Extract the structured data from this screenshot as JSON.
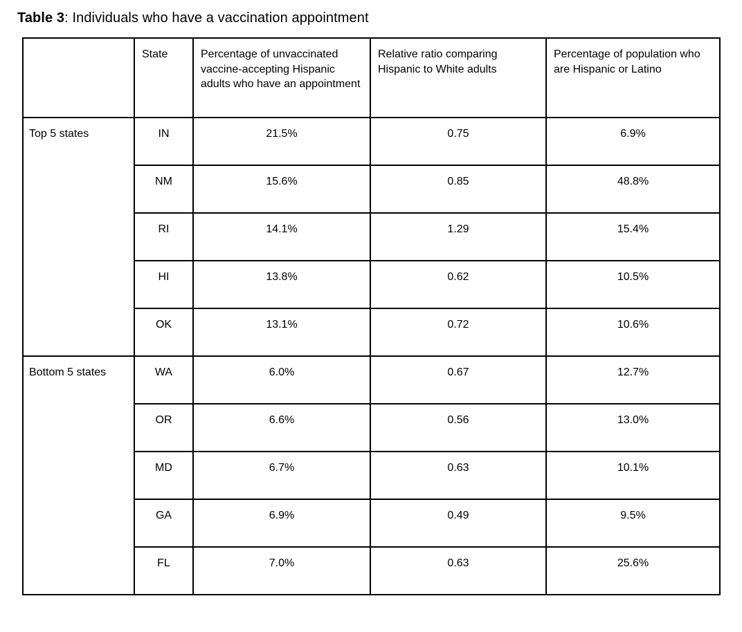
{
  "page": {
    "title_bold": "Table 3",
    "title_rest": ": Individuals who have a vaccination appointment"
  },
  "table": {
    "headers": {
      "group": "",
      "state": "State",
      "pct_appointment": "Percentage of unvaccinated vaccine-accepting Hispanic adults who have an appointment",
      "relative_ratio": "Relative ratio comparing Hispanic to White adults",
      "pct_population": "Percentage of population who are Hispanic or Latino"
    },
    "groups": [
      {
        "label": "Top 5 states",
        "rows": [
          {
            "state": "IN",
            "pct_appointment": "21.5%",
            "relative_ratio": "0.75",
            "pct_population": "6.9%"
          },
          {
            "state": "NM",
            "pct_appointment": "15.6%",
            "relative_ratio": "0.85",
            "pct_population": "48.8%"
          },
          {
            "state": "RI",
            "pct_appointment": "14.1%",
            "relative_ratio": "1.29",
            "pct_population": "15.4%"
          },
          {
            "state": "HI",
            "pct_appointment": "13.8%",
            "relative_ratio": "0.62",
            "pct_population": "10.5%"
          },
          {
            "state": "OK",
            "pct_appointment": "13.1%",
            "relative_ratio": "0.72",
            "pct_population": "10.6%"
          }
        ]
      },
      {
        "label": "Bottom 5 states",
        "rows": [
          {
            "state": "WA",
            "pct_appointment": "6.0%",
            "relative_ratio": "0.67",
            "pct_population": "12.7%"
          },
          {
            "state": "OR",
            "pct_appointment": "6.6%",
            "relative_ratio": "0.56",
            "pct_population": "13.0%"
          },
          {
            "state": "MD",
            "pct_appointment": "6.7%",
            "relative_ratio": "0.63",
            "pct_population": "10.1%"
          },
          {
            "state": "GA",
            "pct_appointment": "6.9%",
            "relative_ratio": "0.49",
            "pct_population": "9.5%"
          },
          {
            "state": "FL",
            "pct_appointment": "7.0%",
            "relative_ratio": "0.63",
            "pct_population": "25.6%"
          }
        ]
      }
    ]
  },
  "colors": {
    "border": "#000000",
    "text": "#000000",
    "background": "#ffffff"
  }
}
